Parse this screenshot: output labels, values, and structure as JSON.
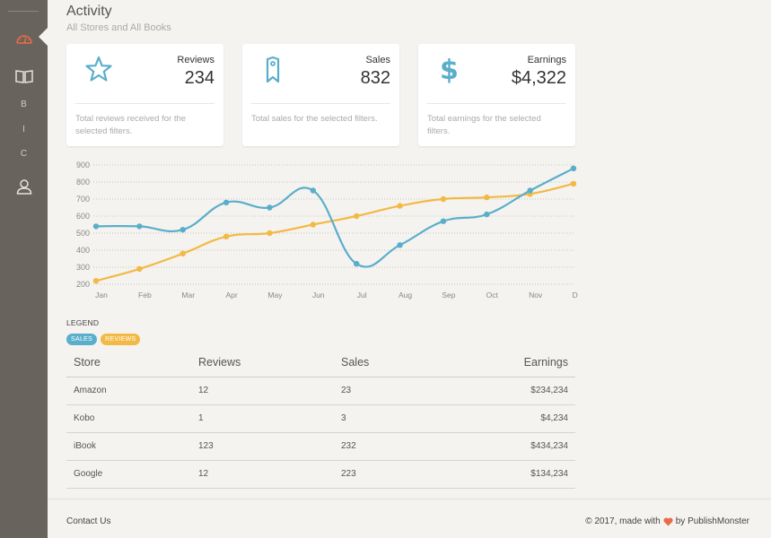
{
  "sidebar": {
    "items": [
      {
        "icon": "dashboard-gauge-icon",
        "active": true
      },
      {
        "icon": "book-open-icon"
      },
      {
        "letter": "B"
      },
      {
        "letter": "I"
      },
      {
        "letter": "C"
      },
      {
        "icon": "user-icon"
      }
    ],
    "active_color": "#e86b4a"
  },
  "header": {
    "title": "Activity",
    "subtitle": "All Stores and All Books"
  },
  "cards": [
    {
      "label": "Reviews",
      "value": "234",
      "description": "Total reviews received for the selected filters.",
      "icon": "star-icon"
    },
    {
      "label": "Sales",
      "value": "832",
      "description": "Total sales for the selected filters.",
      "icon": "tag-icon"
    },
    {
      "label": "Earnings",
      "value": "$4,322",
      "description": "Total earnings for the selected filters.",
      "icon": "dollar-icon"
    }
  ],
  "chart_data": {
    "type": "line",
    "categories": [
      "Jan",
      "Feb",
      "Mar",
      "Apr",
      "May",
      "Jun",
      "Jul",
      "Aug",
      "Sep",
      "Oct",
      "Nov",
      "Dec"
    ],
    "yticks": [
      200,
      300,
      400,
      500,
      600,
      700,
      800,
      900
    ],
    "ylim": [
      200,
      900
    ],
    "grid": true,
    "series": [
      {
        "name": "SALES",
        "color": "#5aaecb",
        "values": [
          540,
          540,
          520,
          680,
          650,
          750,
          320,
          430,
          570,
          610,
          750,
          880
        ]
      },
      {
        "name": "REVIEWS",
        "color": "#f2b945",
        "values": [
          220,
          290,
          380,
          480,
          500,
          550,
          600,
          660,
          700,
          710,
          730,
          790
        ]
      }
    ]
  },
  "legend": {
    "title": "LEGEND",
    "items": [
      {
        "label": "SALES",
        "color": "#5aaecb"
      },
      {
        "label": "REVIEWS",
        "color": "#f2b945"
      }
    ]
  },
  "table": {
    "headers": [
      "Store",
      "Reviews",
      "Sales",
      "Earnings"
    ],
    "rows": [
      [
        "Amazon",
        "12",
        "23",
        "$234,234"
      ],
      [
        "Kobo",
        "1",
        "3",
        "$4,234"
      ],
      [
        "iBook",
        "123",
        "232",
        "$434,234"
      ],
      [
        "Google",
        "12",
        "223",
        "$134,234"
      ]
    ]
  },
  "footer": {
    "contact": "Contact Us",
    "copyright_prefix": "© 2017, made with",
    "copyright_suffix": "by PublishMonster",
    "heart_color": "#e86b4a"
  }
}
